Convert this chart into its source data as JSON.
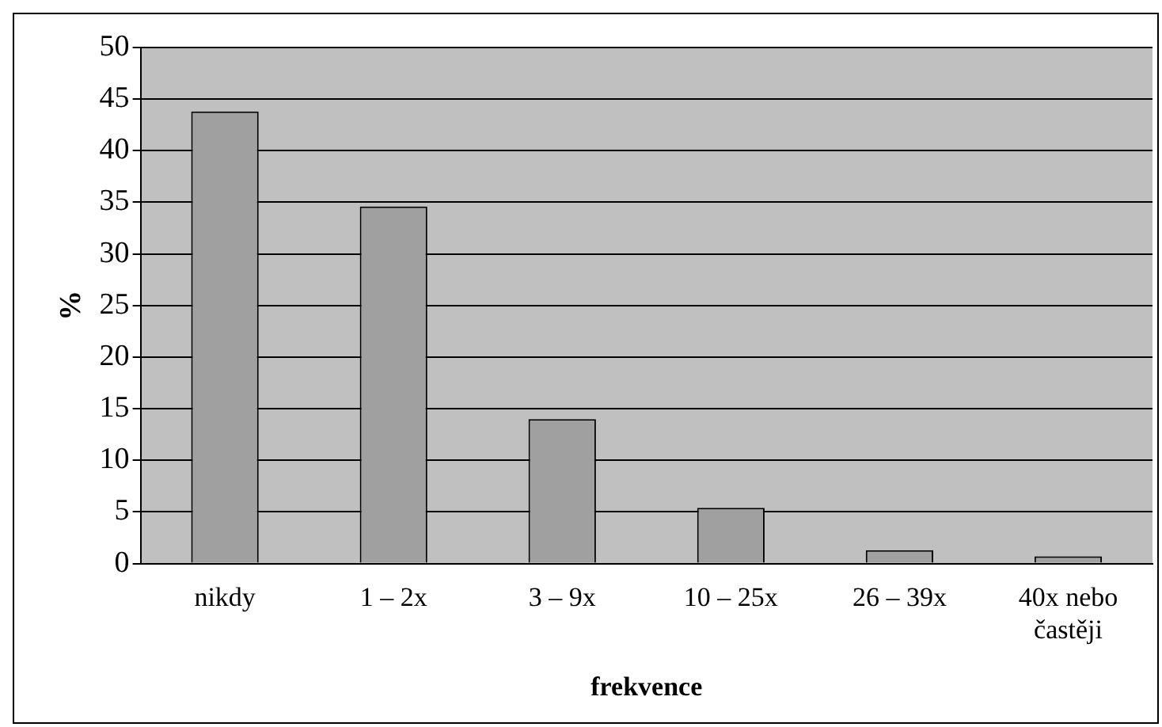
{
  "chart_data": {
    "type": "bar",
    "xlabel": "frekvence",
    "ylabel": "%",
    "categories": [
      "nikdy",
      "1 – 2x",
      "3 – 9x",
      "10 – 25x",
      "26 – 39x",
      "40x nebo častěji"
    ],
    "values": [
      43.8,
      34.6,
      14,
      5.4,
      1.3,
      0.7
    ],
    "color": "#a0a0a0",
    "ylim": [
      0,
      50
    ],
    "yticks": [
      0,
      5,
      10,
      15,
      20,
      25,
      30,
      35,
      40,
      45,
      50
    ],
    "grid": "y",
    "legend": false
  }
}
